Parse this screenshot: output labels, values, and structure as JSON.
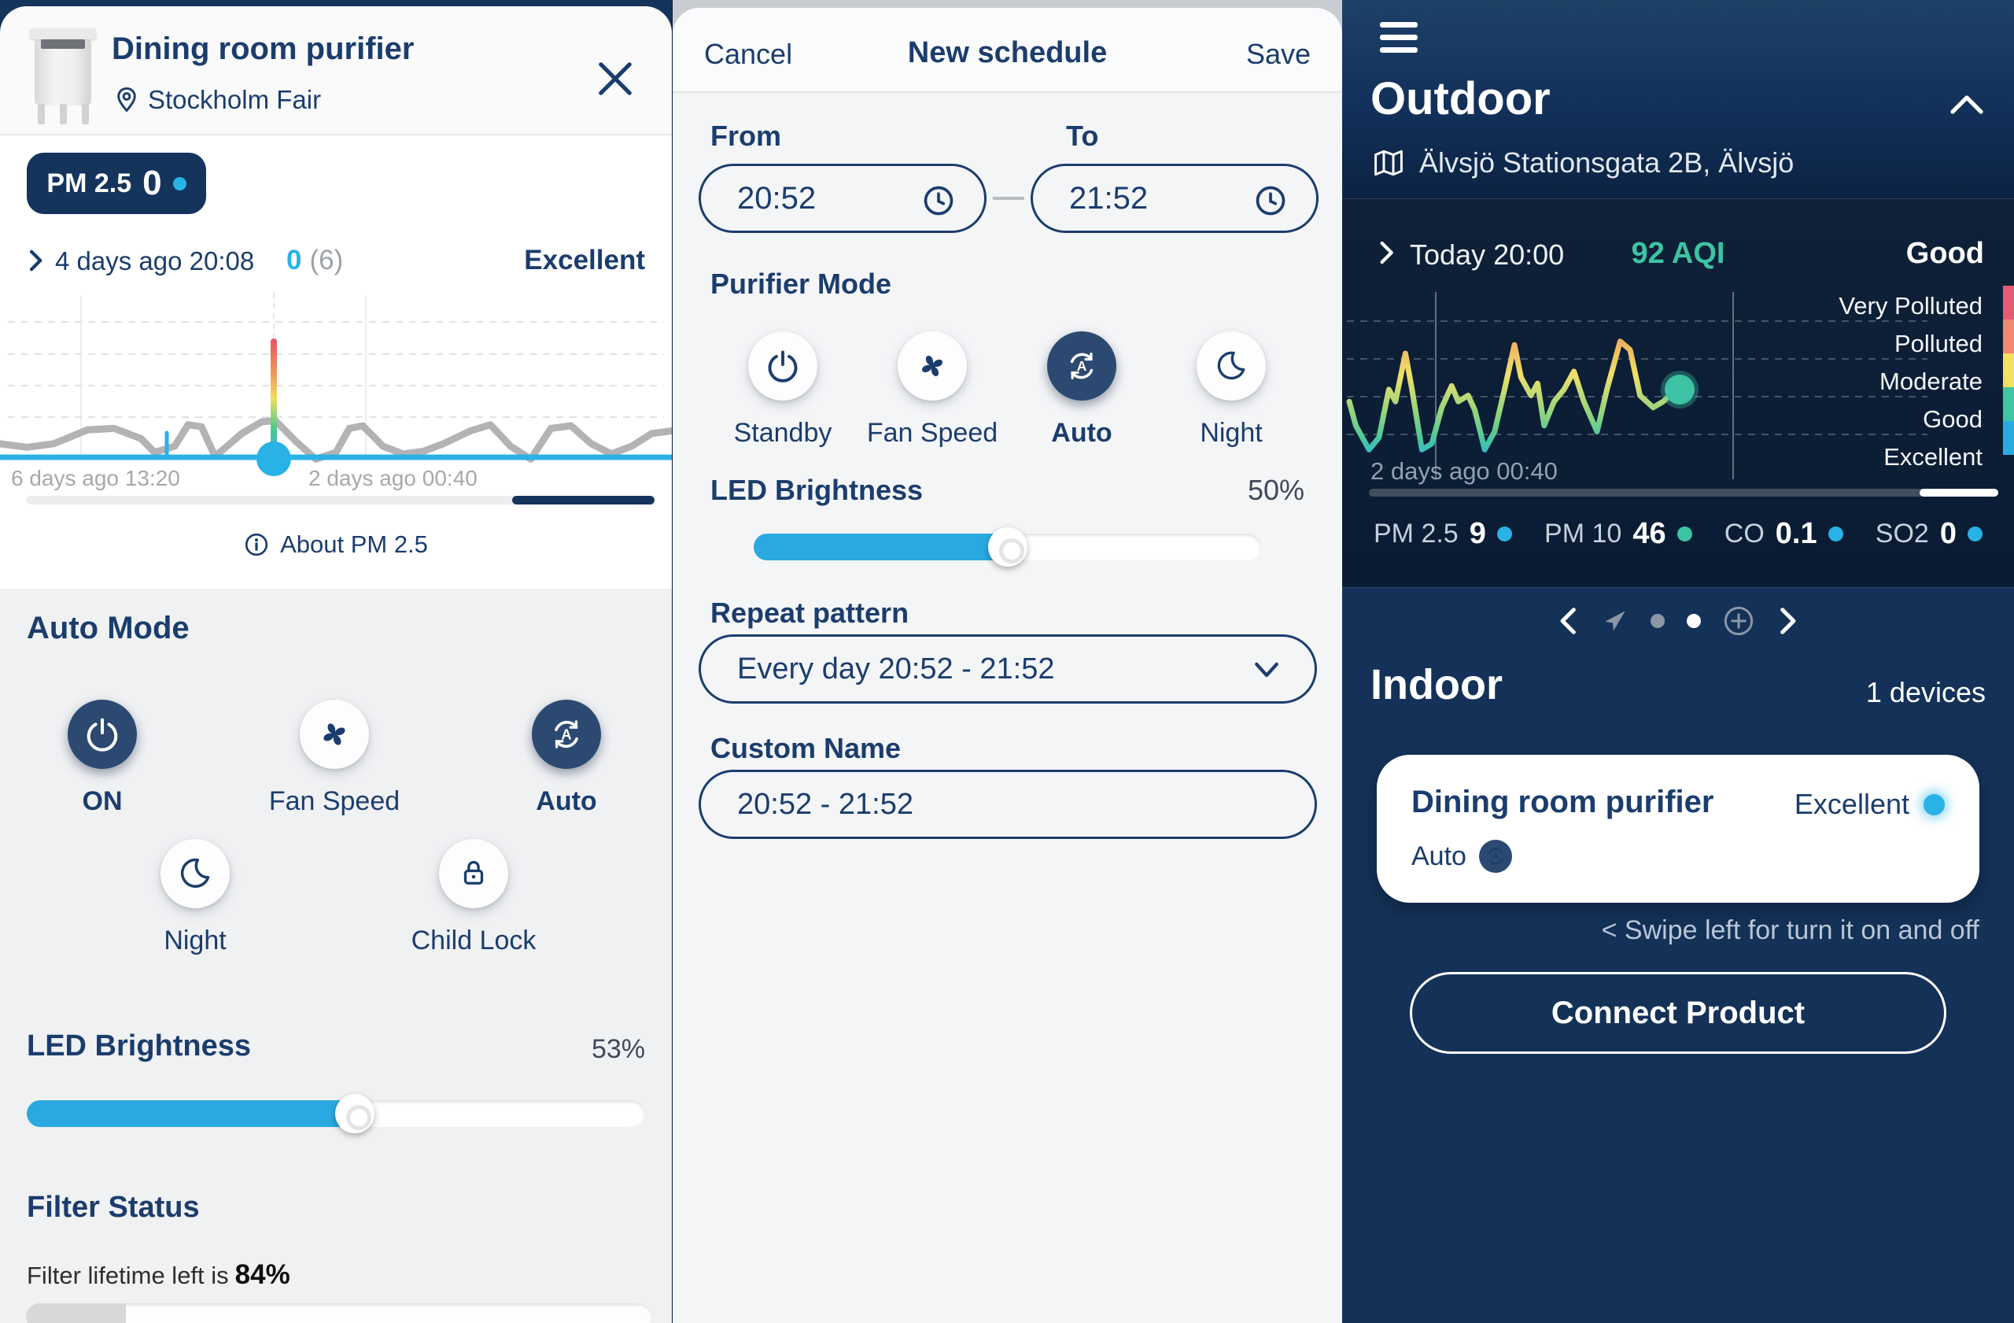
{
  "colors": {
    "navy": "#1b3d6d",
    "navy_deep": "#15345c",
    "cyan": "#29b2e5",
    "teal": "#3ec3a4"
  },
  "left_panel": {
    "title": "Dining room purifier",
    "location": "Stockholm Fair",
    "pm_badge": {
      "label": "PM 2.5",
      "value": "0"
    },
    "reading": {
      "time": "4 days ago 20:08",
      "value": "0",
      "count": "(6)",
      "status": "Excellent"
    },
    "chart": {
      "x_labels": [
        "6 days ago 13:20",
        "2 days ago 00:40"
      ]
    },
    "about_label": "About PM 2.5",
    "auto_mode_heading": "Auto Mode",
    "modes": [
      {
        "label": "ON",
        "active": true
      },
      {
        "label": "Fan Speed",
        "active": false
      },
      {
        "label": "Auto",
        "active": true
      },
      {
        "label": "Night",
        "active": false
      },
      {
        "label": "Child Lock",
        "active": false
      }
    ],
    "led_heading": "LED Brightness",
    "led_value": "53%",
    "led_percent": 53,
    "filter_heading": "Filter Status",
    "filter_text": "Filter lifetime left is",
    "filter_value": "84%",
    "filter_percent": 84
  },
  "schedule": {
    "cancel": "Cancel",
    "title": "New schedule",
    "save": "Save",
    "from_label": "From",
    "from_value": "20:52",
    "to_label": "To",
    "to_value": "21:52",
    "mode_heading": "Purifier Mode",
    "modes": [
      {
        "label": "Standby",
        "active": false
      },
      {
        "label": "Fan Speed",
        "active": false
      },
      {
        "label": "Auto",
        "active": true
      },
      {
        "label": "Night",
        "active": false
      }
    ],
    "led_heading": "LED Brightness",
    "led_value": "50%",
    "led_percent": 50,
    "repeat_label": "Repeat pattern",
    "repeat_value": "Every day 20:52 - 21:52",
    "custom_name_label": "Custom Name",
    "custom_name_value": "20:52 - 21:52"
  },
  "outdoor": {
    "title": "Outdoor",
    "address": "Älvsjö Stationsgata 2B, Älvsjö",
    "reading": {
      "time": "Today 20:00",
      "aqi": "92 AQI",
      "status": "Good"
    },
    "chart": {
      "categories": [
        "Very Polluted",
        "Polluted",
        "Moderate",
        "Good",
        "Excellent"
      ],
      "scale_colors": [
        "#e85a74",
        "#ef8a70",
        "#f2e05e",
        "#3fc4a4",
        "#29abe2"
      ],
      "x_label": "2 days ago 00:40"
    },
    "metrics": [
      {
        "label": "PM 2.5",
        "value": "9",
        "dot": "#29b2e5"
      },
      {
        "label": "PM 10",
        "value": "46",
        "dot": "#3ec3a4"
      },
      {
        "label": "CO",
        "value": "0.1",
        "dot": "#29b2e5"
      },
      {
        "label": "SO2",
        "value": "0",
        "dot": "#29b2e5"
      }
    ],
    "indoor_heading": "Indoor",
    "devices_count": "1 devices",
    "card": {
      "title": "Dining room purifier",
      "status": "Excellent",
      "mode": "Auto"
    },
    "swipe_hint": "< Swipe left for turn it on and off",
    "connect_button": "Connect Product"
  },
  "chart_data": [
    {
      "name": "pm25-history",
      "type": "line",
      "x_labels": [
        "6 days ago 13:20",
        "2 days ago 00:40"
      ],
      "current_value": 0,
      "points": [
        [
          0,
          0.55
        ],
        [
          0.04,
          0.62
        ],
        [
          0.08,
          0.55
        ],
        [
          0.13,
          0.28
        ],
        [
          0.17,
          0.25
        ],
        [
          0.21,
          0.45
        ],
        [
          0.23,
          0.72
        ],
        [
          0.26,
          0.6
        ],
        [
          0.28,
          0.18
        ],
        [
          0.3,
          0.22
        ],
        [
          0.32,
          0.8
        ],
        [
          0.36,
          0.35
        ],
        [
          0.39,
          0.12
        ],
        [
          0.41,
          0.1
        ],
        [
          0.44,
          0.5
        ],
        [
          0.47,
          0.85
        ],
        [
          0.5,
          0.72
        ],
        [
          0.52,
          0.25
        ],
        [
          0.54,
          0.2
        ],
        [
          0.57,
          0.6
        ],
        [
          0.6,
          0.75
        ],
        [
          0.63,
          0.7
        ],
        [
          0.66,
          0.55
        ],
        [
          0.7,
          0.3
        ],
        [
          0.73,
          0.18
        ],
        [
          0.76,
          0.6
        ],
        [
          0.79,
          0.85
        ],
        [
          0.82,
          0.25
        ],
        [
          0.85,
          0.2
        ],
        [
          0.88,
          0.55
        ],
        [
          0.91,
          0.75
        ],
        [
          0.94,
          0.6
        ],
        [
          0.97,
          0.35
        ],
        [
          1,
          0.3
        ]
      ]
    },
    {
      "name": "outdoor-aqi",
      "type": "line",
      "categories": [
        "Excellent",
        "Good",
        "Moderate",
        "Polluted",
        "Very Polluted"
      ],
      "current_aqi": 92,
      "points": [
        [
          0,
          0.55
        ],
        [
          0.02,
          0.75
        ],
        [
          0.06,
          0.95
        ],
        [
          0.09,
          0.85
        ],
        [
          0.12,
          0.45
        ],
        [
          0.14,
          0.55
        ],
        [
          0.17,
          0.15
        ],
        [
          0.19,
          0.45
        ],
        [
          0.22,
          0.95
        ],
        [
          0.25,
          0.9
        ],
        [
          0.28,
          0.6
        ],
        [
          0.31,
          0.42
        ],
        [
          0.33,
          0.55
        ],
        [
          0.36,
          0.5
        ],
        [
          0.38,
          0.62
        ],
        [
          0.41,
          0.95
        ],
        [
          0.44,
          0.8
        ],
        [
          0.47,
          0.45
        ],
        [
          0.5,
          0.08
        ],
        [
          0.52,
          0.35
        ],
        [
          0.55,
          0.5
        ],
        [
          0.57,
          0.4
        ],
        [
          0.59,
          0.75
        ],
        [
          0.62,
          0.55
        ],
        [
          0.65,
          0.45
        ],
        [
          0.68,
          0.3
        ],
        [
          0.71,
          0.55
        ],
        [
          0.75,
          0.8
        ],
        [
          0.78,
          0.45
        ],
        [
          0.8,
          0.25
        ],
        [
          0.82,
          0.05
        ],
        [
          0.85,
          0.12
        ],
        [
          0.88,
          0.5
        ],
        [
          0.92,
          0.6
        ],
        [
          0.95,
          0.55
        ],
        [
          0.99,
          0.45
        ]
      ]
    }
  ]
}
